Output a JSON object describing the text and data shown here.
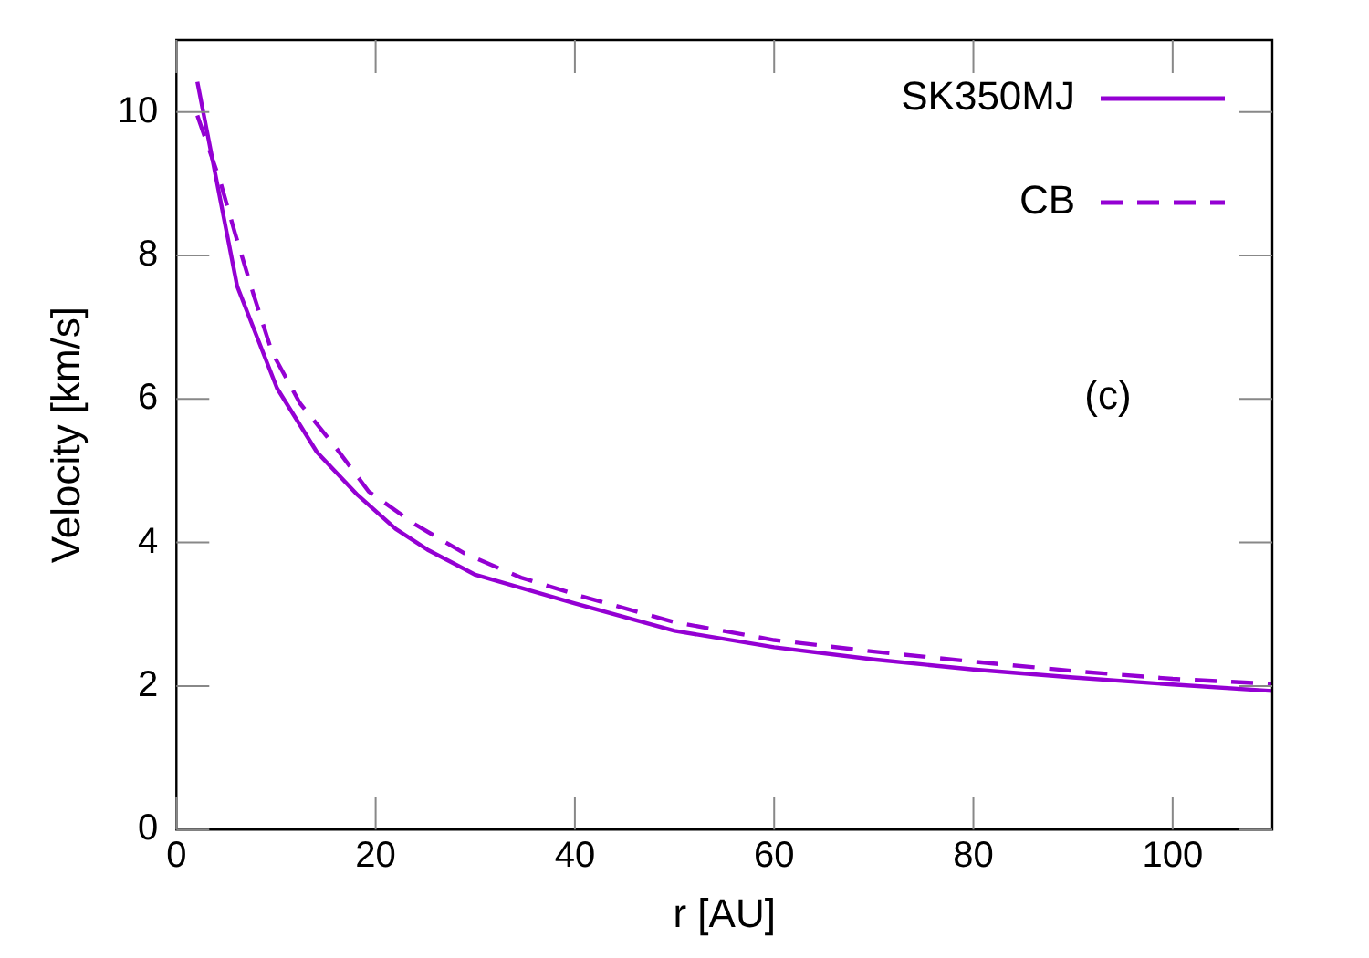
{
  "chart_data": {
    "type": "line",
    "xlabel": "r [AU]",
    "ylabel": "Velocity [km/s]",
    "xlim": [
      0,
      110
    ],
    "ylim": [
      0,
      11
    ],
    "xticks": [
      0,
      20,
      40,
      60,
      80,
      100
    ],
    "yticks": [
      0,
      2,
      4,
      6,
      8,
      10
    ],
    "grid": false,
    "legend": "top right",
    "marker": "none",
    "annotations": [
      "(c)"
    ],
    "series": [
      {
        "name": "SK350MJ",
        "color": "#9400d3",
        "line_style": "solid",
        "x": [
          2.1,
          6.1,
          10.1,
          14.1,
          18.2,
          22,
          25.2,
          30,
          40,
          50,
          60,
          70,
          80,
          90,
          100,
          110
        ],
        "values": [
          10.42,
          7.57,
          6.15,
          5.26,
          4.66,
          4.19,
          3.9,
          3.55,
          3.15,
          2.77,
          2.54,
          2.37,
          2.23,
          2.12,
          2.02,
          1.93
        ]
      },
      {
        "name": "CB",
        "color": "#9400d3",
        "line_style": "dashed",
        "x": [
          2.1,
          4.4,
          5.9,
          7.8,
          9.6,
          12.4,
          15.9,
          19.3,
          24.1,
          28.9,
          34.6,
          40.7,
          50,
          60,
          70,
          80,
          90,
          100,
          110
        ],
        "values": [
          9.95,
          9.03,
          8.3,
          7.43,
          6.65,
          5.94,
          5.34,
          4.71,
          4.24,
          3.85,
          3.51,
          3.25,
          2.89,
          2.64,
          2.48,
          2.34,
          2.21,
          2.1,
          2.03
        ]
      }
    ]
  }
}
